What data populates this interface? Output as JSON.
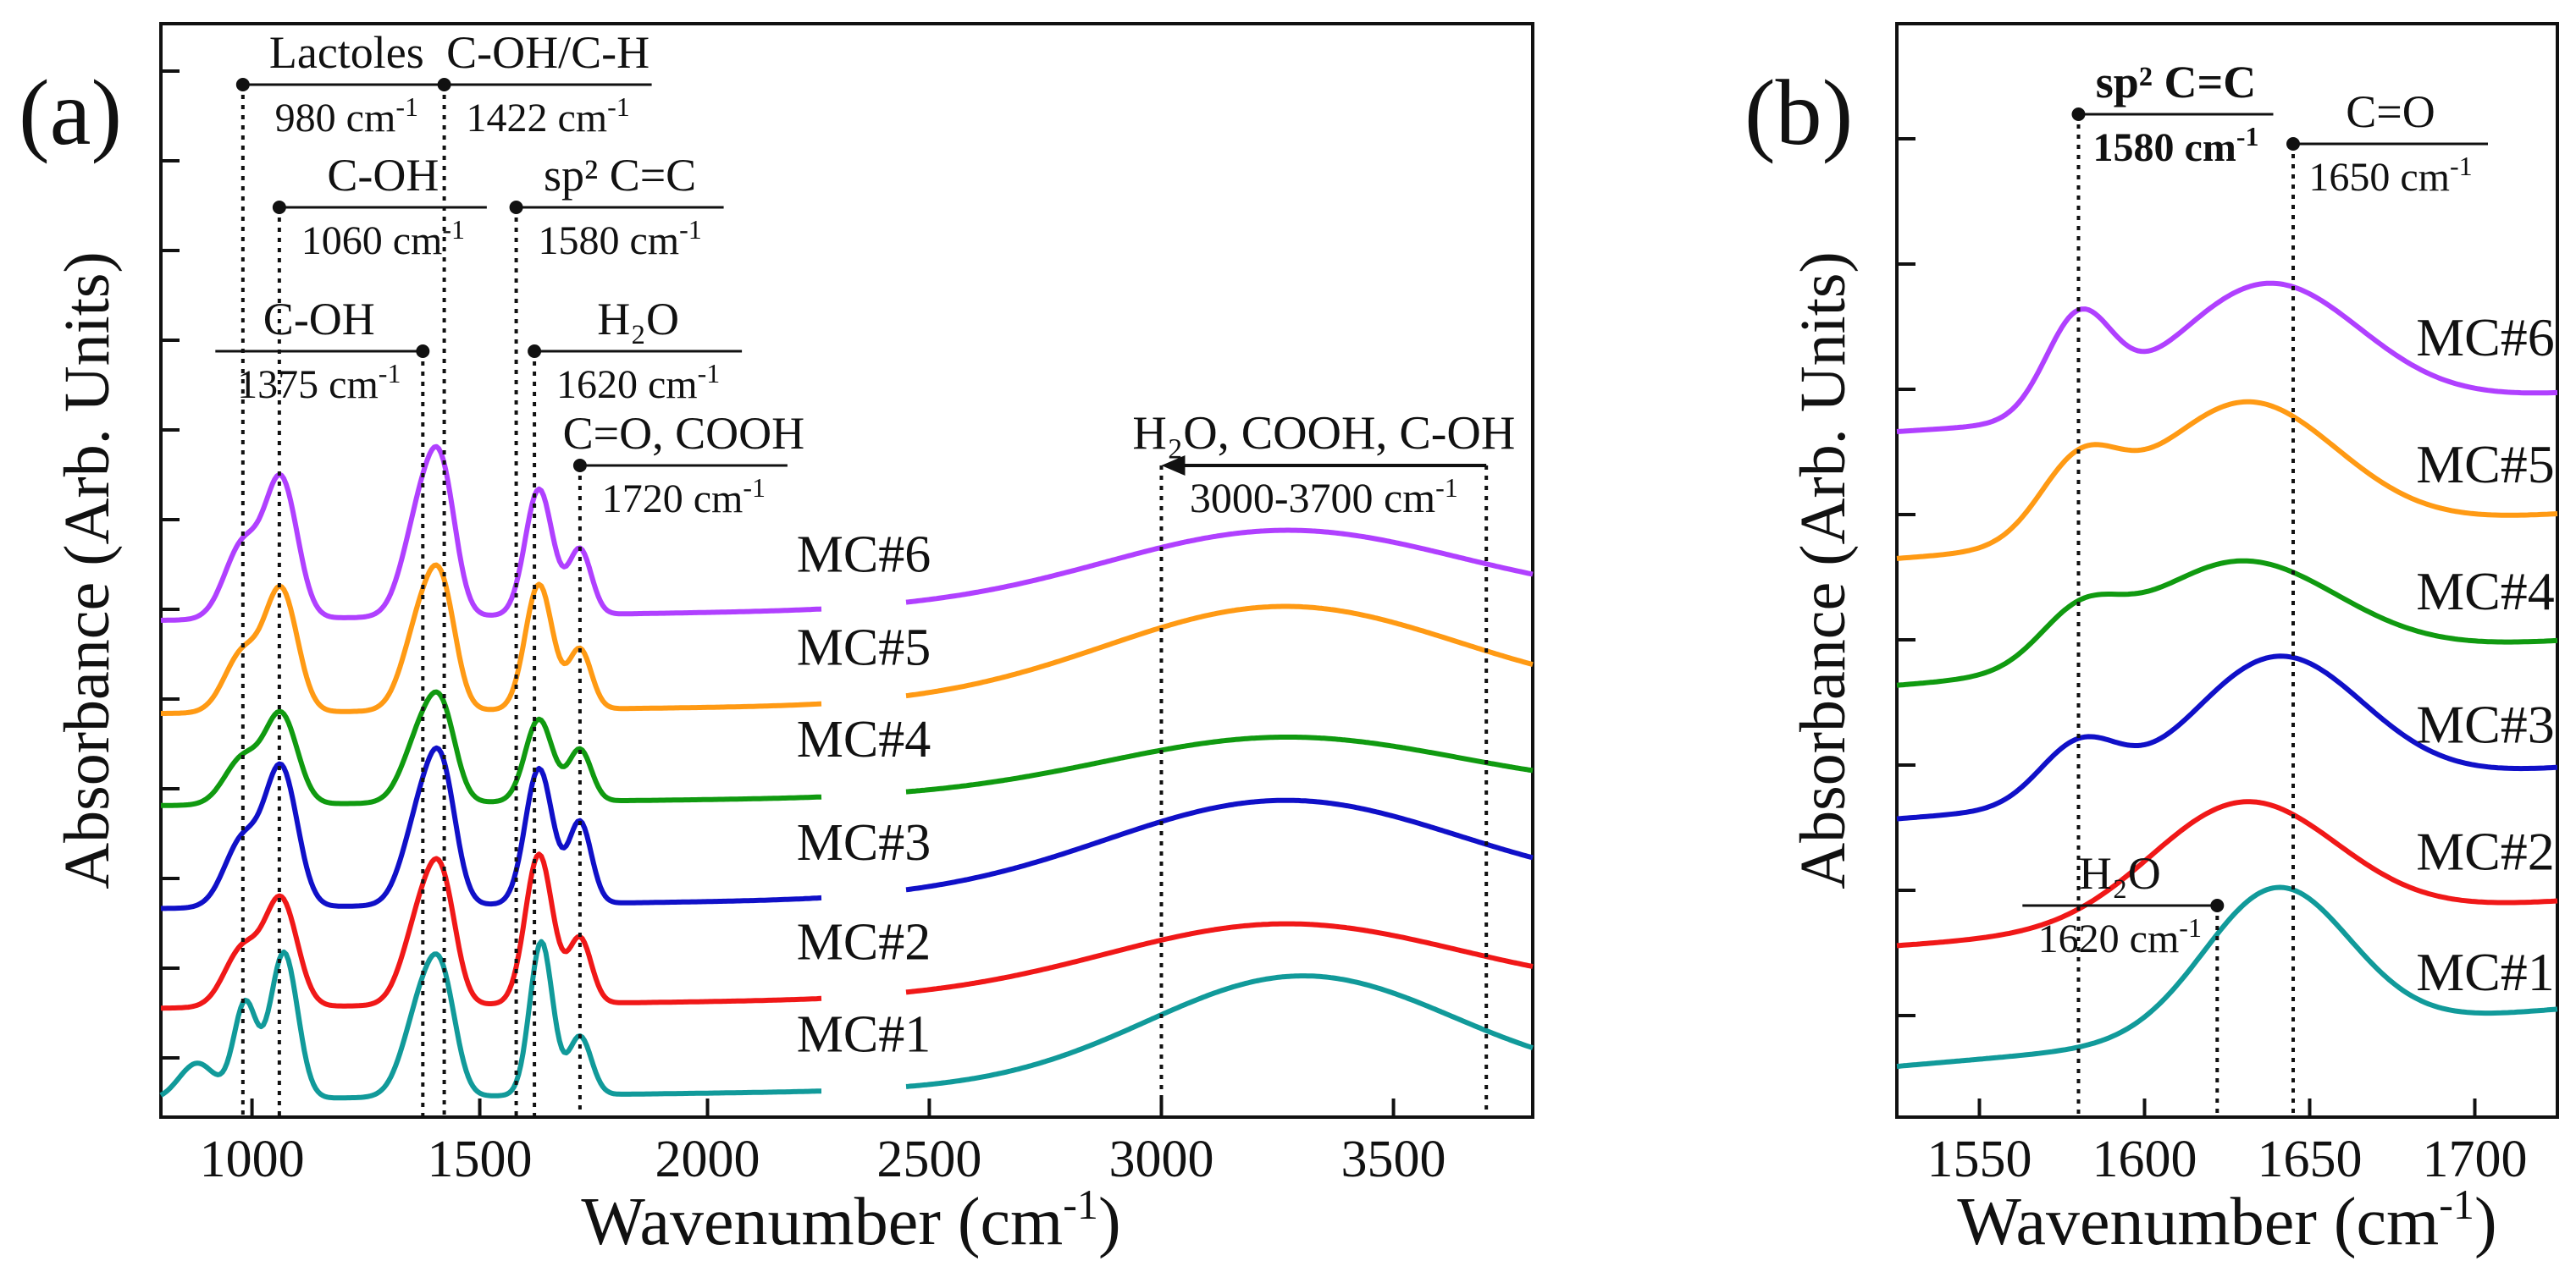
{
  "chart_data": [
    {
      "panel_label": "(a)",
      "type": "line",
      "xlabel": "Wavenumber (cm",
      "xlabel_sup": "-1",
      "xlabel_end": ")",
      "ylabel": "Absorbance (Arb. Units)",
      "segments": [
        {
          "xlim": [
            800,
            2250
          ]
        },
        {
          "xlim": [
            2450,
            3800
          ]
        }
      ],
      "yrange": [
        0,
        10
      ],
      "xticks": [
        1000,
        1500,
        2000,
        2500,
        3000,
        3500
      ],
      "xtick_labels": [
        "1000",
        "1500",
        "2000",
        "2500",
        "3000",
        "3500"
      ],
      "gridlines": false,
      "series": [
        {
          "name": "MC#6",
          "color": "#b040ff",
          "offset": 4.43,
          "amp": 1.25,
          "features": [
            [
              1065,
              1.0,
              35
            ],
            [
              1375,
              0.82,
              40
            ],
            [
              1420,
              0.72,
              30
            ],
            [
              1630,
              0.93,
              30
            ],
            [
              1720,
              0.48,
              25
            ],
            [
              3260,
              0.55,
              380
            ]
          ],
          "base": [
            1.0,
            0.35
          ],
          "shoulder": [
            980,
            0.55,
            40
          ]
        },
        {
          "name": "MC#5",
          "color": "#ff9a14",
          "offset": 3.57,
          "amp": 1.1,
          "features": [
            [
              1065,
              1.0,
              35
            ],
            [
              1375,
              0.8,
              40
            ],
            [
              1420,
              0.7,
              30
            ],
            [
              1630,
              1.05,
              30
            ],
            [
              1720,
              0.5,
              25
            ],
            [
              3260,
              0.8,
              380
            ]
          ],
          "base": [
            1.0,
            0.3
          ],
          "shoulder": [
            980,
            0.5,
            40
          ]
        },
        {
          "name": "MC#4",
          "color": "#109a10",
          "offset": 2.72,
          "amp": 0.95,
          "features": [
            [
              1065,
              0.85,
              35
            ],
            [
              1375,
              0.7,
              40
            ],
            [
              1420,
              0.62,
              30
            ],
            [
              1630,
              0.8,
              30
            ],
            [
              1720,
              0.5,
              25
            ],
            [
              3260,
              0.55,
              380
            ]
          ],
          "base": [
            0.6,
            0.35
          ],
          "shoulder": [
            980,
            0.45,
            40
          ]
        },
        {
          "name": "MC#3",
          "color": "#1010c8",
          "offset": 1.77,
          "amp": 1.25,
          "features": [
            [
              1065,
              1.0,
              35
            ],
            [
              1375,
              0.72,
              40
            ],
            [
              1420,
              0.7,
              30
            ],
            [
              1630,
              1.0,
              30
            ],
            [
              1720,
              0.6,
              25
            ],
            [
              3260,
              0.7,
              380
            ]
          ],
          "base": [
            1.0,
            0.3
          ],
          "shoulder": [
            980,
            0.5,
            40
          ]
        },
        {
          "name": "MC#2",
          "color": "#f01818",
          "offset": 0.85,
          "amp": 1.2,
          "features": [
            [
              1065,
              0.8,
              35
            ],
            [
              1375,
              0.72,
              40
            ],
            [
              1420,
              0.66,
              30
            ],
            [
              1630,
              1.15,
              30
            ],
            [
              1720,
              0.5,
              25
            ],
            [
              3260,
              0.55,
              380
            ]
          ],
          "base": [
            0.8,
            0.3
          ],
          "shoulder": [
            980,
            0.45,
            40
          ]
        },
        {
          "name": "MC#1",
          "color": "#119a9a",
          "offset": 0.0,
          "amp": 1.35,
          "features": [
            [
              1070,
              1.0,
              30
            ],
            [
              985,
              0.65,
              25
            ],
            [
              1375,
              0.65,
              40
            ],
            [
              1420,
              0.55,
              30
            ],
            [
              1635,
              1.05,
              25
            ],
            [
              1720,
              0.4,
              25
            ],
            [
              3300,
              0.75,
              330
            ]
          ],
          "base": [
            1.2,
            0.3
          ],
          "shoulder": [
            880,
            0.25,
            40
          ]
        }
      ],
      "annotations": [
        {
          "label": "Lactoles",
          "value": "980 cm",
          "sup": "-1",
          "x": 980,
          "level": 0
        },
        {
          "label": "C-OH/C-H",
          "value": "1422 cm",
          "sup": "-1",
          "x": 1422,
          "level": 0
        },
        {
          "label": "C-OH",
          "value": "1060 cm",
          "sup": "-1",
          "x": 1060,
          "level": 1
        },
        {
          "label": "sp² C=C",
          "value": "1580 cm",
          "sup": "-1",
          "x": 1580,
          "level": 1
        },
        {
          "label": "C-OH",
          "value": "1375 cm",
          "sup": "-1",
          "x": 1375,
          "level": 2
        },
        {
          "label": "H₂O",
          "value": "1620 cm",
          "sup": "-1",
          "x": 1620,
          "level": 2
        },
        {
          "label": "C=O, COOH",
          "value": "1720 cm",
          "sup": "-1",
          "x": 1720,
          "level": 3
        },
        {
          "label": "H₂O, COOH, C-OH",
          "value": "3000-3700 cm",
          "sup": "-1",
          "x": [
            3000,
            3700
          ],
          "level": 3
        }
      ]
    },
    {
      "panel_label": "(b)",
      "type": "line",
      "xlabel": "Wavenumber (cm",
      "xlabel_sup": "-1",
      "xlabel_end": ")",
      "ylabel": "Absorbance (Arb. Units)",
      "xlim": [
        1525,
        1725
      ],
      "xticks": [
        1550,
        1600,
        1650,
        1700
      ],
      "xtick_labels": [
        "1550",
        "1600",
        "1650",
        "1700"
      ],
      "gridlines": false,
      "series": [
        {
          "name": "MC#6",
          "color": "#b040ff",
          "offset": 5.0,
          "features": [
            [
              1580,
              0.75,
              10
            ],
            [
              1637,
              1.0,
              28
            ]
          ],
          "base": [
            0.0,
            0.3
          ]
        },
        {
          "name": "MC#5",
          "color": "#ff9a14",
          "offset": 4.0,
          "features": [
            [
              1580,
              0.55,
              12
            ],
            [
              1630,
              1.05,
              28
            ]
          ],
          "base": [
            0.0,
            0.35
          ]
        },
        {
          "name": "MC#4",
          "color": "#109a10",
          "offset": 3.0,
          "features": [
            [
              1580,
              0.35,
              12
            ],
            [
              1628,
              0.8,
              30
            ]
          ],
          "base": [
            0.0,
            0.35
          ]
        },
        {
          "name": "MC#3",
          "color": "#1010c8",
          "offset": 1.95,
          "features": [
            [
              1580,
              0.45,
              12
            ],
            [
              1640,
              1.05,
              26
            ]
          ],
          "base": [
            0.0,
            0.4
          ]
        },
        {
          "name": "MC#2",
          "color": "#f01818",
          "offset": 0.95,
          "features": [
            [
              1630,
              0.95,
              28
            ]
          ],
          "base": [
            0.0,
            0.35
          ]
        },
        {
          "name": "MC#1",
          "color": "#119a9a",
          "offset": 0.0,
          "features": [
            [
              1640,
              1.15,
              22
            ]
          ],
          "base": [
            0.0,
            0.45
          ]
        }
      ],
      "annotations": [
        {
          "label": "sp² C=C",
          "value": "1580 cm",
          "sup": "-1",
          "x": 1580,
          "bold": true
        },
        {
          "label": "C=O",
          "value": "1650 cm",
          "sup": "-1",
          "x": 1645
        },
        {
          "label": "H₂O",
          "value": "1620 cm",
          "sup": "-1",
          "x": 1622
        }
      ]
    }
  ]
}
